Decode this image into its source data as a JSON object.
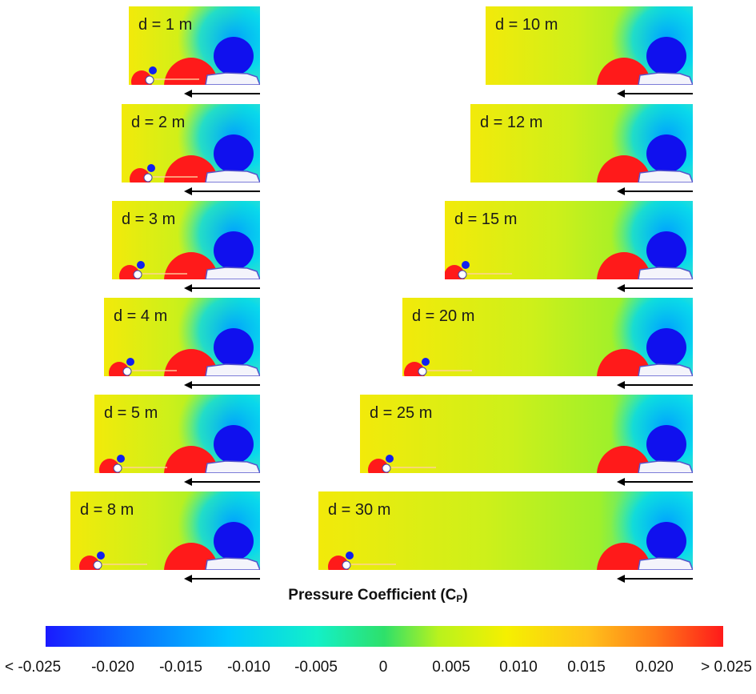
{
  "panels": [
    {
      "label": "d = 1 m"
    },
    {
      "label": "d = 2 m"
    },
    {
      "label": "d = 3 m"
    },
    {
      "label": "d = 4 m"
    },
    {
      "label": "d = 5 m"
    },
    {
      "label": "d = 8 m"
    },
    {
      "label": "d = 10 m"
    },
    {
      "label": "d = 12 m"
    },
    {
      "label": "d = 15 m"
    },
    {
      "label": "d = 20 m"
    },
    {
      "label": "d = 25 m"
    },
    {
      "label": "d = 30 m"
    }
  ],
  "colorbar": {
    "title_main": "Pressure Coefficient (C",
    "title_sub": "P",
    "title_end": ")",
    "ticks": [
      "< -0.025",
      "-0.020",
      "-0.015",
      "-0.010",
      "-0.005",
      "0",
      "0.005",
      "0.010",
      "0.015",
      "0.020",
      "> 0.025"
    ],
    "min_color": "#1a1aff",
    "mid_color": "#b9f21d",
    "max_color": "#ff1a1a"
  }
}
